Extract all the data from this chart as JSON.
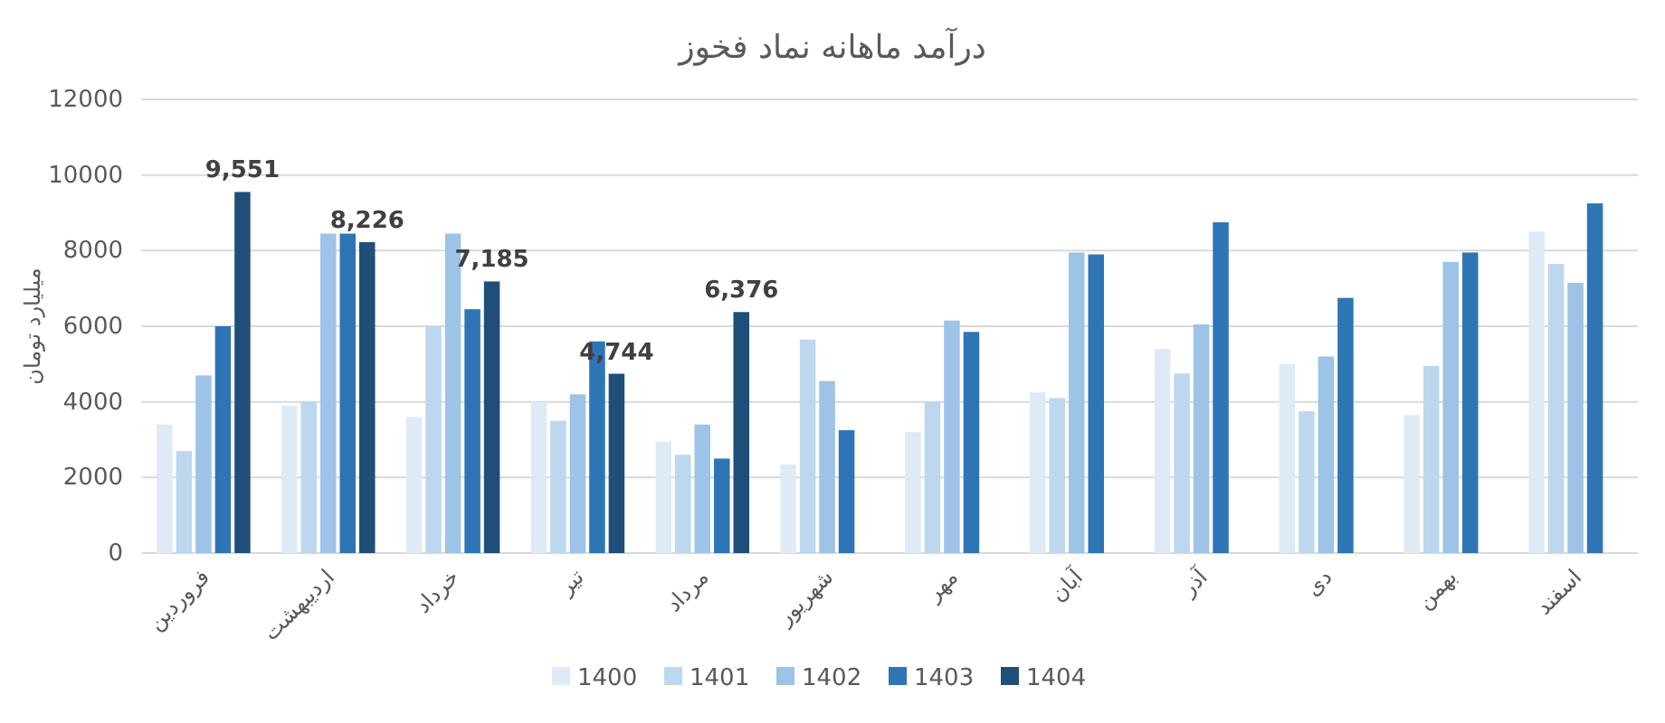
{
  "chart_data": {
    "type": "bar",
    "title": "درآمد ماهانه نماد فخوز",
    "ylabel": "میلیارد تومان",
    "categories": [
      "فروردین",
      "اردیبهشت",
      "خرداد",
      "تیر",
      "مرداد",
      "شهریور",
      "مهر",
      "آبان",
      "آذر",
      "دی",
      "بهمن",
      "اسفند"
    ],
    "series": [
      {
        "name": "1400",
        "color": "#deebf7",
        "values": [
          3400,
          3900,
          3600,
          4000,
          2950,
          2350,
          3200,
          4250,
          5400,
          5000,
          3650,
          8500
        ]
      },
      {
        "name": "1401",
        "color": "#bdd7ee",
        "values": [
          2700,
          4000,
          6000,
          3500,
          2600,
          5650,
          4000,
          4100,
          4750,
          3750,
          4950,
          7650
        ]
      },
      {
        "name": "1402",
        "color": "#9dc3e6",
        "values": [
          4700,
          8450,
          8450,
          4200,
          3400,
          4550,
          6150,
          7950,
          6050,
          5200,
          7700,
          7150
        ]
      },
      {
        "name": "1403",
        "color": "#2e75b6",
        "values": [
          6000,
          8450,
          6450,
          5600,
          2500,
          3250,
          5850,
          7900,
          8750,
          6750,
          7950,
          9250
        ]
      },
      {
        "name": "1404",
        "color": "#1f4e79",
        "values": [
          9551,
          8226,
          7185,
          4744,
          6376,
          null,
          null,
          null,
          null,
          null,
          null,
          null
        ],
        "value_labels": [
          "9,551",
          "8,226",
          "7,185",
          "4,744",
          "6,376",
          null,
          null,
          null,
          null,
          null,
          null,
          null
        ]
      }
    ],
    "ylim": [
      0,
      12000
    ],
    "yticks": [
      0,
      2000,
      4000,
      6000,
      8000,
      10000,
      12000
    ],
    "grid": "y",
    "legend": "bottom"
  }
}
